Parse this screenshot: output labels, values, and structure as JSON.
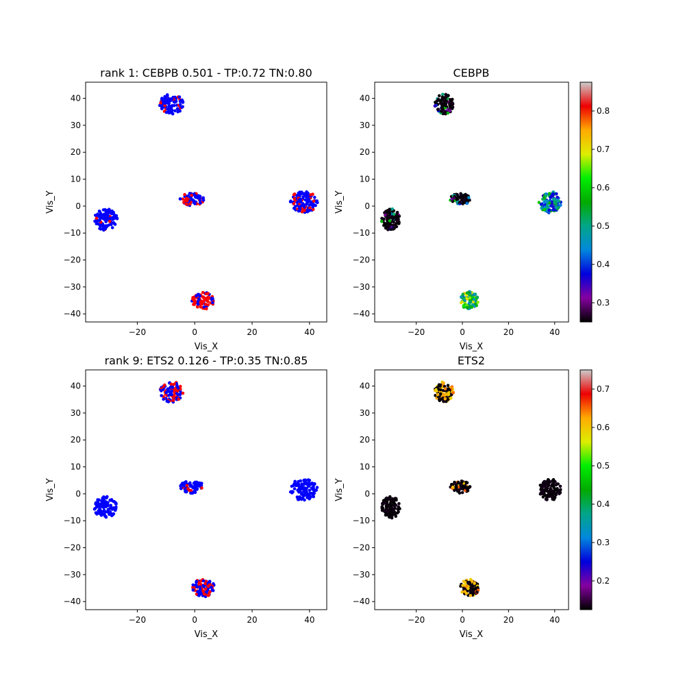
{
  "chart_data": [
    {
      "type": "scatter",
      "title": "rank 1: CEBPB 0.501 - TP:0.72 TN:0.80",
      "xlabel": "Vis_X",
      "ylabel": "Vis_Y",
      "xlim": [
        -38,
        46
      ],
      "ylim": [
        -43,
        46
      ],
      "xticks": [
        -20,
        0,
        20,
        40
      ],
      "yticks": [
        -40,
        -30,
        -20,
        -10,
        0,
        10,
        20,
        30,
        40
      ],
      "grid": false,
      "color_mode": "binary",
      "colors": {
        "negative": "#0000ff",
        "positive": "#ff0000"
      },
      "clusters": [
        {
          "cx": -8,
          "cy": 37.8,
          "rx": 4.2,
          "ry": 3.8,
          "n": 95,
          "fraction_positive": 0.12
        },
        {
          "cx": -31,
          "cy": -5,
          "rx": 4.0,
          "ry": 4.0,
          "n": 100,
          "fraction_positive": 0.04
        },
        {
          "cx": -1,
          "cy": 2.5,
          "rx": 4.3,
          "ry": 2.3,
          "n": 70,
          "fraction_positive": 0.3
        },
        {
          "cx": 38,
          "cy": 1.5,
          "rx": 4.8,
          "ry": 4.0,
          "n": 110,
          "fraction_positive": 0.22
        },
        {
          "cx": 3,
          "cy": -35,
          "rx": 4.0,
          "ry": 3.3,
          "n": 100,
          "fraction_positive": 0.7
        }
      ]
    },
    {
      "type": "scatter",
      "title": "CEBPB",
      "xlabel": "Vis_X",
      "ylabel": "Vis_Y",
      "xlim": [
        -38,
        46
      ],
      "ylim": [
        -43,
        46
      ],
      "xticks": [
        -20,
        0,
        20,
        40
      ],
      "yticks": [
        -40,
        -30,
        -20,
        -10,
        0,
        10,
        20,
        30,
        40
      ],
      "grid": false,
      "color_mode": "continuous",
      "colormap": "nipy_spectral",
      "colorbar": {
        "vmin": 0.25,
        "vmax": 0.875,
        "ticks": [
          0.3,
          0.4,
          0.5,
          0.6,
          0.7,
          0.8
        ]
      },
      "clusters": [
        {
          "cx": -8,
          "cy": 37.8,
          "rx": 4.2,
          "ry": 3.8,
          "n": 95,
          "value_range": [
            0.25,
            0.6
          ],
          "fraction_low": 0.82
        },
        {
          "cx": -31,
          "cy": -5,
          "rx": 4.0,
          "ry": 4.0,
          "n": 100,
          "value_range": [
            0.25,
            0.58
          ],
          "fraction_low": 0.85
        },
        {
          "cx": -1,
          "cy": 2.5,
          "rx": 4.3,
          "ry": 2.3,
          "n": 70,
          "value_range": [
            0.25,
            0.6
          ],
          "fraction_low": 0.6
        },
        {
          "cx": 38,
          "cy": 1.5,
          "rx": 4.8,
          "ry": 4.0,
          "n": 110,
          "value_range": [
            0.35,
            0.6
          ],
          "fraction_low": 0.0
        },
        {
          "cx": 3,
          "cy": -35,
          "rx": 4.0,
          "ry": 3.3,
          "n": 100,
          "value_range": [
            0.42,
            0.72
          ],
          "fraction_low": 0.0
        }
      ]
    },
    {
      "type": "scatter",
      "title": "rank 9: ETS2 0.126 - TP:0.35 TN:0.85",
      "xlabel": "Vis_X",
      "ylabel": "Vis_Y",
      "xlim": [
        -38,
        46
      ],
      "ylim": [
        -43,
        46
      ],
      "xticks": [
        -20,
        0,
        20,
        40
      ],
      "yticks": [
        -40,
        -30,
        -20,
        -10,
        0,
        10,
        20,
        30,
        40
      ],
      "grid": false,
      "color_mode": "binary",
      "colors": {
        "negative": "#0000ff",
        "positive": "#ff0000"
      },
      "clusters": [
        {
          "cx": -8,
          "cy": 37.8,
          "rx": 4.2,
          "ry": 3.8,
          "n": 95,
          "fraction_positive": 0.38
        },
        {
          "cx": -31,
          "cy": -5,
          "rx": 4.0,
          "ry": 4.0,
          "n": 100,
          "fraction_positive": 0.0
        },
        {
          "cx": -1,
          "cy": 2.5,
          "rx": 4.3,
          "ry": 2.3,
          "n": 70,
          "fraction_positive": 0.08
        },
        {
          "cx": 38,
          "cy": 1.5,
          "rx": 4.8,
          "ry": 4.0,
          "n": 110,
          "fraction_positive": 0.0
        },
        {
          "cx": 3,
          "cy": -35,
          "rx": 4.0,
          "ry": 3.3,
          "n": 100,
          "fraction_positive": 0.28
        }
      ]
    },
    {
      "type": "scatter",
      "title": "ETS2",
      "xlabel": "Vis_X",
      "ylabel": "Vis_Y",
      "xlim": [
        -38,
        46
      ],
      "ylim": [
        -43,
        46
      ],
      "xticks": [
        -20,
        0,
        20,
        40
      ],
      "yticks": [
        -40,
        -30,
        -20,
        -10,
        0,
        10,
        20,
        30,
        40
      ],
      "grid": false,
      "color_mode": "continuous",
      "colormap": "nipy_spectral",
      "colorbar": {
        "vmin": 0.125,
        "vmax": 0.75,
        "ticks": [
          0.2,
          0.3,
          0.4,
          0.5,
          0.6,
          0.7
        ]
      },
      "clusters": [
        {
          "cx": -8,
          "cy": 37.8,
          "rx": 4.2,
          "ry": 3.8,
          "n": 95,
          "value_range": [
            0.58,
            0.66
          ],
          "fraction_low": 0.55
        },
        {
          "cx": -31,
          "cy": -5,
          "rx": 4.0,
          "ry": 4.0,
          "n": 100,
          "value_range": [
            0.58,
            0.66
          ],
          "fraction_low": 1.0
        },
        {
          "cx": -1,
          "cy": 2.5,
          "rx": 4.3,
          "ry": 2.3,
          "n": 70,
          "value_range": [
            0.58,
            0.66
          ],
          "fraction_low": 0.9
        },
        {
          "cx": 38,
          "cy": 1.5,
          "rx": 4.8,
          "ry": 4.0,
          "n": 110,
          "value_range": [
            0.58,
            0.66
          ],
          "fraction_low": 1.0
        },
        {
          "cx": 3,
          "cy": -35,
          "rx": 4.0,
          "ry": 3.3,
          "n": 100,
          "value_range": [
            0.58,
            0.66
          ],
          "fraction_low": 0.72
        }
      ]
    }
  ]
}
